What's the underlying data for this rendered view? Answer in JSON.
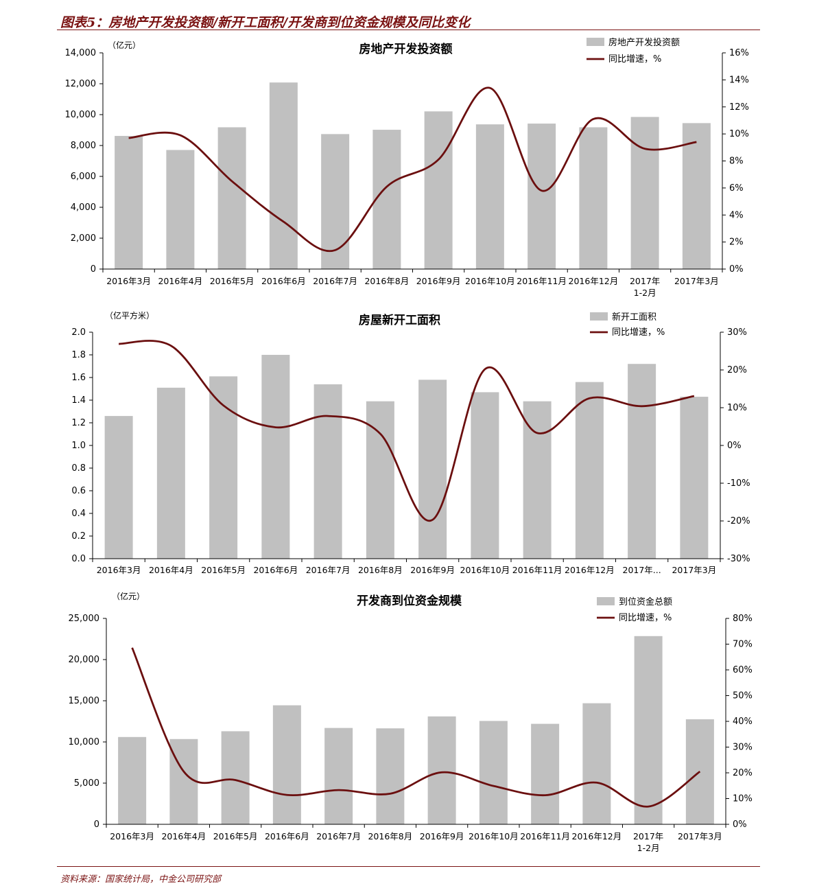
{
  "figure": {
    "title": "图表5：房地产开发投资额/新开工面积/开发商到位资金规模及同比变化",
    "source": "资料来源：国家统计局，中金公司研究部"
  },
  "colors": {
    "bar": "#c0c0c0",
    "line": "#6b0f0f",
    "accent": "#7a1212",
    "axis": "#000000"
  },
  "chart_data": [
    {
      "type": "bar",
      "title": "房地产开发投资额",
      "unit_label": "（亿元）",
      "categories": [
        "2016年3月",
        "2016年4月",
        "2016年5月",
        "2016年6月",
        "2016年7月",
        "2016年8月",
        "2016年9月",
        "2016年10月",
        "2016年11月",
        "2016年12月",
        "2017年\n1-2月",
        "2017年3月"
      ],
      "series": [
        {
          "name": "房地产开发投资额",
          "type": "bar",
          "axis": "left",
          "values": [
            8620,
            7710,
            9180,
            12080,
            8740,
            9020,
            10210,
            9370,
            9420,
            9180,
            9850,
            9450
          ]
        },
        {
          "name": "同比增速，%",
          "type": "line",
          "axis": "right",
          "values": [
            9.7,
            9.9,
            6.5,
            3.5,
            1.4,
            6.1,
            8.1,
            13.4,
            5.8,
            11.1,
            8.9,
            9.4
          ]
        }
      ],
      "y_left": {
        "min": 0,
        "max": 14000,
        "ticks": [
          "0",
          "2,000",
          "4,000",
          "6,000",
          "8,000",
          "10,000",
          "12,000",
          "14,000"
        ]
      },
      "y_right": {
        "min": 0,
        "max": 16,
        "ticks": [
          "0%",
          "2%",
          "4%",
          "6%",
          "8%",
          "10%",
          "12%",
          "14%",
          "16%"
        ]
      },
      "legend_position": "top-right"
    },
    {
      "type": "bar",
      "title": "房屋新开工面积",
      "unit_label": "（亿平方米）",
      "categories": [
        "2016年3月",
        "2016年4月",
        "2016年5月",
        "2016年6月",
        "2016年7月",
        "2016年8月",
        "2016年9月",
        "2016年10月",
        "2016年11月",
        "2016年12月",
        "2017年...",
        "2017年3月"
      ],
      "series": [
        {
          "name": "新开工面积",
          "type": "bar",
          "axis": "left",
          "values": [
            1.26,
            1.51,
            1.61,
            1.8,
            1.54,
            1.39,
            1.58,
            1.47,
            1.39,
            1.56,
            1.72,
            1.43
          ]
        },
        {
          "name": "同比增速，%",
          "type": "line",
          "axis": "right",
          "values": [
            26.9,
            26.4,
            10.6,
            4.8,
            7.8,
            3.1,
            -19.7,
            20.2,
            3.3,
            12.5,
            10.4,
            13.1
          ]
        }
      ],
      "y_left": {
        "min": 0,
        "max": 2.0,
        "ticks": [
          "0.0",
          "0.2",
          "0.4",
          "0.6",
          "0.8",
          "1.0",
          "1.2",
          "1.4",
          "1.6",
          "1.8",
          "2.0"
        ]
      },
      "y_right": {
        "min": -30,
        "max": 30,
        "ticks": [
          "-30%",
          "-20%",
          "-10%",
          "0%",
          "10%",
          "20%",
          "30%"
        ]
      },
      "legend_position": "top-right"
    },
    {
      "type": "bar",
      "title": "开发商到位资金规模",
      "unit_label": "（亿元）",
      "categories": [
        "2016年3月",
        "2016年4月",
        "2016年5月",
        "2016年6月",
        "2016年7月",
        "2016年8月",
        "2016年9月",
        "2016年10月",
        "2016年11月",
        "2016年12月",
        "2017年\n1-2月",
        "2017年3月"
      ],
      "series": [
        {
          "name": "到位资金总额",
          "type": "bar",
          "axis": "left",
          "values": [
            10600,
            10350,
            11300,
            14450,
            11700,
            11650,
            13100,
            12550,
            12200,
            14700,
            22850,
            12750
          ]
        },
        {
          "name": "同比增速，%",
          "type": "line",
          "axis": "right",
          "values": [
            68.6,
            20.5,
            17.2,
            11.4,
            13.3,
            11.9,
            20.2,
            14.9,
            11.3,
            16.2,
            6.9,
            20.5
          ]
        }
      ],
      "y_left": {
        "min": 0,
        "max": 25000,
        "ticks": [
          "0",
          "5,000",
          "10,000",
          "15,000",
          "20,000",
          "25,000"
        ]
      },
      "y_right": {
        "min": 0,
        "max": 80,
        "ticks": [
          "0%",
          "10%",
          "20%",
          "30%",
          "40%",
          "50%",
          "60%",
          "70%",
          "80%"
        ]
      },
      "legend_position": "top-right"
    }
  ]
}
